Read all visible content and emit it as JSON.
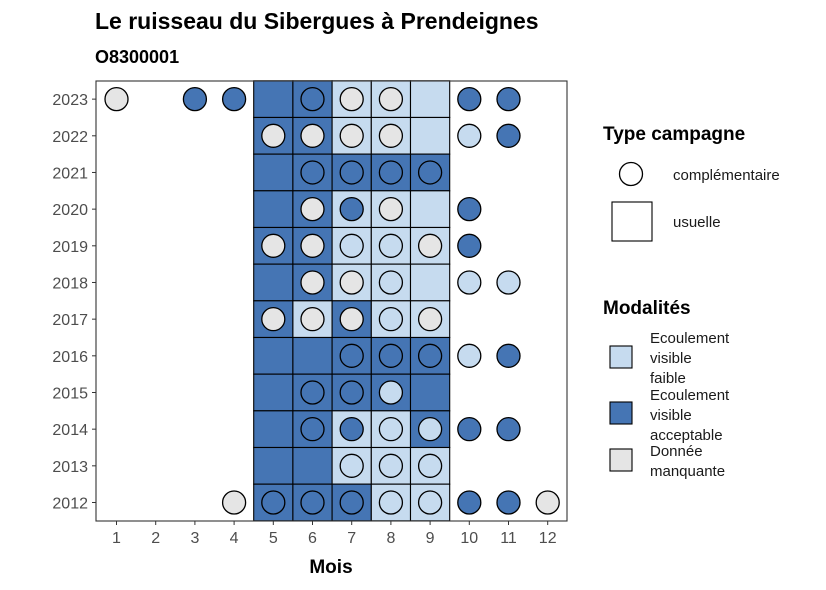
{
  "chart_data": {
    "type": "heatmap",
    "title": "Le ruisseau du Sibergues à Prendeignes",
    "subtitle": "O8300001",
    "xlabel": "Mois",
    "ylabel": "",
    "x_ticks": [
      "1",
      "2",
      "3",
      "4",
      "5",
      "6",
      "7",
      "8",
      "9",
      "10",
      "11",
      "12"
    ],
    "y_ticks": [
      "2012",
      "2013",
      "2014",
      "2015",
      "2016",
      "2017",
      "2018",
      "2019",
      "2020",
      "2021",
      "2022",
      "2023"
    ],
    "colors": {
      "Ecoulement visible faible": "#c6dbef",
      "Ecoulement visible acceptable": "#4575b4",
      "Donnée manquante": "#e5e5e5"
    },
    "tiles_usuelle": [
      {
        "year": 2023,
        "month": 5,
        "cat": "acceptable"
      },
      {
        "year": 2023,
        "month": 6,
        "cat": "acceptable"
      },
      {
        "year": 2023,
        "month": 7,
        "cat": "faible"
      },
      {
        "year": 2023,
        "month": 8,
        "cat": "faible"
      },
      {
        "year": 2023,
        "month": 9,
        "cat": "faible"
      },
      {
        "year": 2022,
        "month": 5,
        "cat": "acceptable"
      },
      {
        "year": 2022,
        "month": 6,
        "cat": "acceptable"
      },
      {
        "year": 2022,
        "month": 7,
        "cat": "faible"
      },
      {
        "year": 2022,
        "month": 8,
        "cat": "faible"
      },
      {
        "year": 2022,
        "month": 9,
        "cat": "faible"
      },
      {
        "year": 2021,
        "month": 5,
        "cat": "acceptable"
      },
      {
        "year": 2021,
        "month": 6,
        "cat": "acceptable"
      },
      {
        "year": 2021,
        "month": 7,
        "cat": "acceptable"
      },
      {
        "year": 2021,
        "month": 8,
        "cat": "acceptable"
      },
      {
        "year": 2021,
        "month": 9,
        "cat": "acceptable"
      },
      {
        "year": 2020,
        "month": 5,
        "cat": "acceptable"
      },
      {
        "year": 2020,
        "month": 6,
        "cat": "acceptable"
      },
      {
        "year": 2020,
        "month": 7,
        "cat": "faible"
      },
      {
        "year": 2020,
        "month": 8,
        "cat": "faible"
      },
      {
        "year": 2020,
        "month": 9,
        "cat": "faible"
      },
      {
        "year": 2019,
        "month": 5,
        "cat": "acceptable"
      },
      {
        "year": 2019,
        "month": 6,
        "cat": "acceptable"
      },
      {
        "year": 2019,
        "month": 7,
        "cat": "faible"
      },
      {
        "year": 2019,
        "month": 8,
        "cat": "faible"
      },
      {
        "year": 2019,
        "month": 9,
        "cat": "faible"
      },
      {
        "year": 2018,
        "month": 5,
        "cat": "acceptable"
      },
      {
        "year": 2018,
        "month": 6,
        "cat": "acceptable"
      },
      {
        "year": 2018,
        "month": 7,
        "cat": "faible"
      },
      {
        "year": 2018,
        "month": 8,
        "cat": "faible"
      },
      {
        "year": 2018,
        "month": 9,
        "cat": "faible"
      },
      {
        "year": 2017,
        "month": 5,
        "cat": "acceptable"
      },
      {
        "year": 2017,
        "month": 6,
        "cat": "faible"
      },
      {
        "year": 2017,
        "month": 7,
        "cat": "acceptable"
      },
      {
        "year": 2017,
        "month": 8,
        "cat": "faible"
      },
      {
        "year": 2017,
        "month": 9,
        "cat": "faible"
      },
      {
        "year": 2016,
        "month": 5,
        "cat": "acceptable"
      },
      {
        "year": 2016,
        "month": 6,
        "cat": "acceptable"
      },
      {
        "year": 2016,
        "month": 7,
        "cat": "acceptable"
      },
      {
        "year": 2016,
        "month": 8,
        "cat": "acceptable"
      },
      {
        "year": 2016,
        "month": 9,
        "cat": "acceptable"
      },
      {
        "year": 2015,
        "month": 5,
        "cat": "acceptable"
      },
      {
        "year": 2015,
        "month": 6,
        "cat": "acceptable"
      },
      {
        "year": 2015,
        "month": 7,
        "cat": "acceptable"
      },
      {
        "year": 2015,
        "month": 8,
        "cat": "acceptable"
      },
      {
        "year": 2015,
        "month": 9,
        "cat": "acceptable"
      },
      {
        "year": 2014,
        "month": 5,
        "cat": "acceptable"
      },
      {
        "year": 2014,
        "month": 6,
        "cat": "acceptable"
      },
      {
        "year": 2014,
        "month": 7,
        "cat": "faible"
      },
      {
        "year": 2014,
        "month": 8,
        "cat": "faible"
      },
      {
        "year": 2014,
        "month": 9,
        "cat": "acceptable"
      },
      {
        "year": 2013,
        "month": 5,
        "cat": "acceptable"
      },
      {
        "year": 2013,
        "month": 6,
        "cat": "acceptable"
      },
      {
        "year": 2013,
        "month": 7,
        "cat": "faible"
      },
      {
        "year": 2013,
        "month": 8,
        "cat": "faible"
      },
      {
        "year": 2013,
        "month": 9,
        "cat": "faible"
      },
      {
        "year": 2012,
        "month": 5,
        "cat": "acceptable"
      },
      {
        "year": 2012,
        "month": 6,
        "cat": "acceptable"
      },
      {
        "year": 2012,
        "month": 7,
        "cat": "acceptable"
      },
      {
        "year": 2012,
        "month": 8,
        "cat": "faible"
      },
      {
        "year": 2012,
        "month": 9,
        "cat": "faible"
      }
    ],
    "points_complementaire": [
      {
        "year": 2023,
        "month": 1,
        "cat": "manquante"
      },
      {
        "year": 2023,
        "month": 3,
        "cat": "acceptable"
      },
      {
        "year": 2023,
        "month": 4,
        "cat": "acceptable"
      },
      {
        "year": 2023,
        "month": 6,
        "cat": "acceptable"
      },
      {
        "year": 2023,
        "month": 7,
        "cat": "manquante"
      },
      {
        "year": 2023,
        "month": 8,
        "cat": "manquante"
      },
      {
        "year": 2023,
        "month": 10,
        "cat": "acceptable"
      },
      {
        "year": 2023,
        "month": 11,
        "cat": "acceptable"
      },
      {
        "year": 2022,
        "month": 5,
        "cat": "manquante"
      },
      {
        "year": 2022,
        "month": 6,
        "cat": "manquante"
      },
      {
        "year": 2022,
        "month": 7,
        "cat": "manquante"
      },
      {
        "year": 2022,
        "month": 8,
        "cat": "manquante"
      },
      {
        "year": 2022,
        "month": 10,
        "cat": "faible"
      },
      {
        "year": 2022,
        "month": 11,
        "cat": "acceptable"
      },
      {
        "year": 2021,
        "month": 6,
        "cat": "acceptable"
      },
      {
        "year": 2021,
        "month": 7,
        "cat": "acceptable"
      },
      {
        "year": 2021,
        "month": 8,
        "cat": "acceptable"
      },
      {
        "year": 2021,
        "month": 9,
        "cat": "acceptable"
      },
      {
        "year": 2020,
        "month": 6,
        "cat": "manquante"
      },
      {
        "year": 2020,
        "month": 7,
        "cat": "acceptable"
      },
      {
        "year": 2020,
        "month": 8,
        "cat": "manquante"
      },
      {
        "year": 2020,
        "month": 10,
        "cat": "acceptable"
      },
      {
        "year": 2019,
        "month": 5,
        "cat": "manquante"
      },
      {
        "year": 2019,
        "month": 6,
        "cat": "manquante"
      },
      {
        "year": 2019,
        "month": 7,
        "cat": "faible"
      },
      {
        "year": 2019,
        "month": 8,
        "cat": "faible"
      },
      {
        "year": 2019,
        "month": 9,
        "cat": "manquante"
      },
      {
        "year": 2019,
        "month": 10,
        "cat": "acceptable"
      },
      {
        "year": 2018,
        "month": 6,
        "cat": "manquante"
      },
      {
        "year": 2018,
        "month": 7,
        "cat": "manquante"
      },
      {
        "year": 2018,
        "month": 8,
        "cat": "faible"
      },
      {
        "year": 2018,
        "month": 10,
        "cat": "faible"
      },
      {
        "year": 2018,
        "month": 11,
        "cat": "faible"
      },
      {
        "year": 2017,
        "month": 5,
        "cat": "manquante"
      },
      {
        "year": 2017,
        "month": 6,
        "cat": "manquante"
      },
      {
        "year": 2017,
        "month": 7,
        "cat": "manquante"
      },
      {
        "year": 2017,
        "month": 8,
        "cat": "faible"
      },
      {
        "year": 2017,
        "month": 9,
        "cat": "manquante"
      },
      {
        "year": 2016,
        "month": 7,
        "cat": "acceptable"
      },
      {
        "year": 2016,
        "month": 8,
        "cat": "acceptable"
      },
      {
        "year": 2016,
        "month": 9,
        "cat": "acceptable"
      },
      {
        "year": 2016,
        "month": 10,
        "cat": "faible"
      },
      {
        "year": 2016,
        "month": 11,
        "cat": "acceptable"
      },
      {
        "year": 2015,
        "month": 6,
        "cat": "acceptable"
      },
      {
        "year": 2015,
        "month": 7,
        "cat": "acceptable"
      },
      {
        "year": 2015,
        "month": 8,
        "cat": "faible"
      },
      {
        "year": 2014,
        "month": 6,
        "cat": "acceptable"
      },
      {
        "year": 2014,
        "month": 7,
        "cat": "acceptable"
      },
      {
        "year": 2014,
        "month": 8,
        "cat": "faible"
      },
      {
        "year": 2014,
        "month": 9,
        "cat": "faible"
      },
      {
        "year": 2014,
        "month": 10,
        "cat": "acceptable"
      },
      {
        "year": 2014,
        "month": 11,
        "cat": "acceptable"
      },
      {
        "year": 2013,
        "month": 7,
        "cat": "faible"
      },
      {
        "year": 2013,
        "month": 8,
        "cat": "faible"
      },
      {
        "year": 2013,
        "month": 9,
        "cat": "faible"
      },
      {
        "year": 2012,
        "month": 4,
        "cat": "manquante"
      },
      {
        "year": 2012,
        "month": 5,
        "cat": "acceptable"
      },
      {
        "year": 2012,
        "month": 6,
        "cat": "acceptable"
      },
      {
        "year": 2012,
        "month": 7,
        "cat": "acceptable"
      },
      {
        "year": 2012,
        "month": 8,
        "cat": "faible"
      },
      {
        "year": 2012,
        "month": 9,
        "cat": "faible"
      },
      {
        "year": 2012,
        "month": 10,
        "cat": "acceptable"
      },
      {
        "year": 2012,
        "month": 11,
        "cat": "acceptable"
      },
      {
        "year": 2012,
        "month": 12,
        "cat": "manquante"
      }
    ],
    "legend": {
      "type_title": "Type campagne",
      "type_items": [
        "complémentaire",
        "usuelle"
      ],
      "mod_title": "Modalités",
      "mod_items": [
        {
          "key": "faible",
          "lines": [
            "Ecoulement",
            "visible",
            "faible"
          ]
        },
        {
          "key": "acceptable",
          "lines": [
            "Ecoulement",
            "visible",
            "acceptable"
          ]
        },
        {
          "key": "manquante",
          "lines": [
            "Donnée",
            "manquante"
          ]
        }
      ],
      "placement": "right"
    },
    "grid": false
  }
}
